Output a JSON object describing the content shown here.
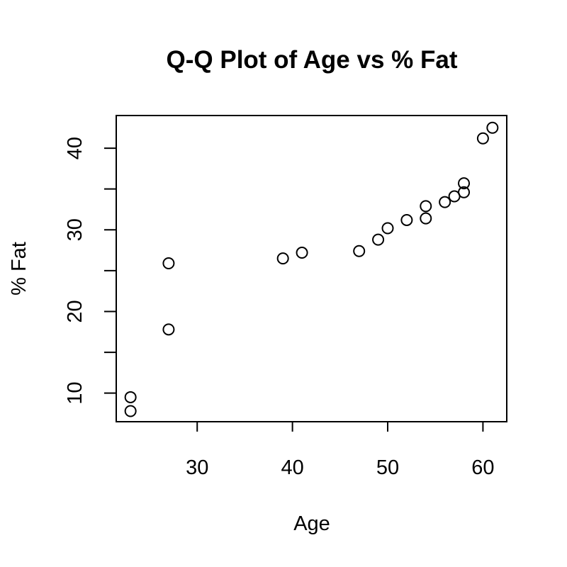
{
  "chart_data": {
    "type": "scatter",
    "title": "Q-Q Plot of Age vs % Fat",
    "xlabel": "Age",
    "ylabel": "% Fat",
    "xlim": [
      21.5,
      62.5
    ],
    "ylim": [
      6.5,
      44
    ],
    "xticks": [
      30,
      40,
      50,
      60
    ],
    "yticks": [
      10,
      15,
      20,
      25,
      30,
      35,
      40
    ],
    "ytick_labels": [
      "10",
      "",
      "20",
      "",
      "30",
      "",
      "40"
    ],
    "grid": false,
    "x": [
      23,
      23,
      27,
      27,
      39,
      41,
      47,
      49,
      50,
      52,
      54,
      54,
      56,
      57,
      58,
      58,
      60,
      61
    ],
    "y": [
      7.8,
      9.5,
      17.8,
      25.9,
      26.5,
      27.2,
      27.4,
      28.8,
      30.2,
      31.2,
      31.4,
      32.9,
      33.4,
      34.1,
      34.6,
      35.7,
      41.2,
      42.5
    ]
  }
}
